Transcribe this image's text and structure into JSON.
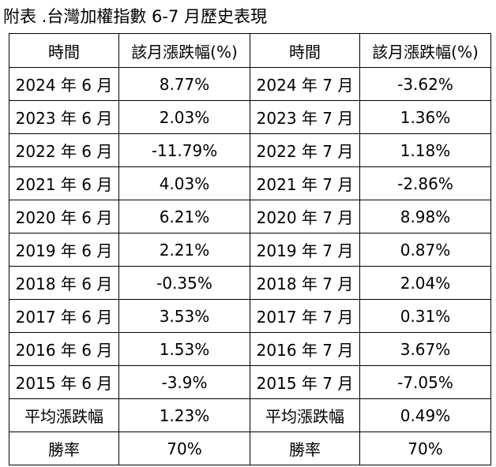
{
  "caption": "附表  .台灣加權指數 6-7 月歷史表現",
  "headers": [
    "時間",
    "該月漲跌幅(%)",
    "時間",
    "該月漲跌幅(%)"
  ],
  "rows": [
    {
      "jun_label": "2024 年 6 月",
      "jun_value": "8.77%",
      "jul_label": "2024 年 7 月",
      "jul_value": "-3.62%"
    },
    {
      "jun_label": "2023 年 6 月",
      "jun_value": "2.03%",
      "jul_label": "2023 年 7 月",
      "jul_value": "1.36%"
    },
    {
      "jun_label": "2022 年 6 月",
      "jun_value": "-11.79%",
      "jul_label": "2022 年 7 月",
      "jul_value": "1.18%"
    },
    {
      "jun_label": "2021 年 6 月",
      "jun_value": "4.03%",
      "jul_label": "2021 年 7 月",
      "jul_value": "-2.86%"
    },
    {
      "jun_label": "2020 年 6 月",
      "jun_value": "6.21%",
      "jul_label": "2020 年 7 月",
      "jul_value": "8.98%"
    },
    {
      "jun_label": "2019 年 6 月",
      "jun_value": "2.21%",
      "jul_label": "2019 年 7 月",
      "jul_value": "0.87%"
    },
    {
      "jun_label": "2018 年 6 月",
      "jun_value": "-0.35%",
      "jul_label": "2018 年 7 月",
      "jul_value": "2.04%"
    },
    {
      "jun_label": "2017 年 6 月",
      "jun_value": "3.53%",
      "jul_label": "2017 年 7 月",
      "jul_value": "0.31%"
    },
    {
      "jun_label": "2016 年 6 月",
      "jun_value": "1.53%",
      "jul_label": "2016 年 7 月",
      "jul_value": "3.67%"
    },
    {
      "jun_label": "2015 年 6 月",
      "jun_value": "-3.9%",
      "jul_label": "2015 年 7 月",
      "jul_value": "-7.05%"
    }
  ],
  "average": {
    "label": "平均漲跌幅",
    "jun_value": "1.23%",
    "jul_value": "0.49%"
  },
  "win_rate": {
    "label": "勝率",
    "jun_value": "70%",
    "jul_value": "70%"
  }
}
